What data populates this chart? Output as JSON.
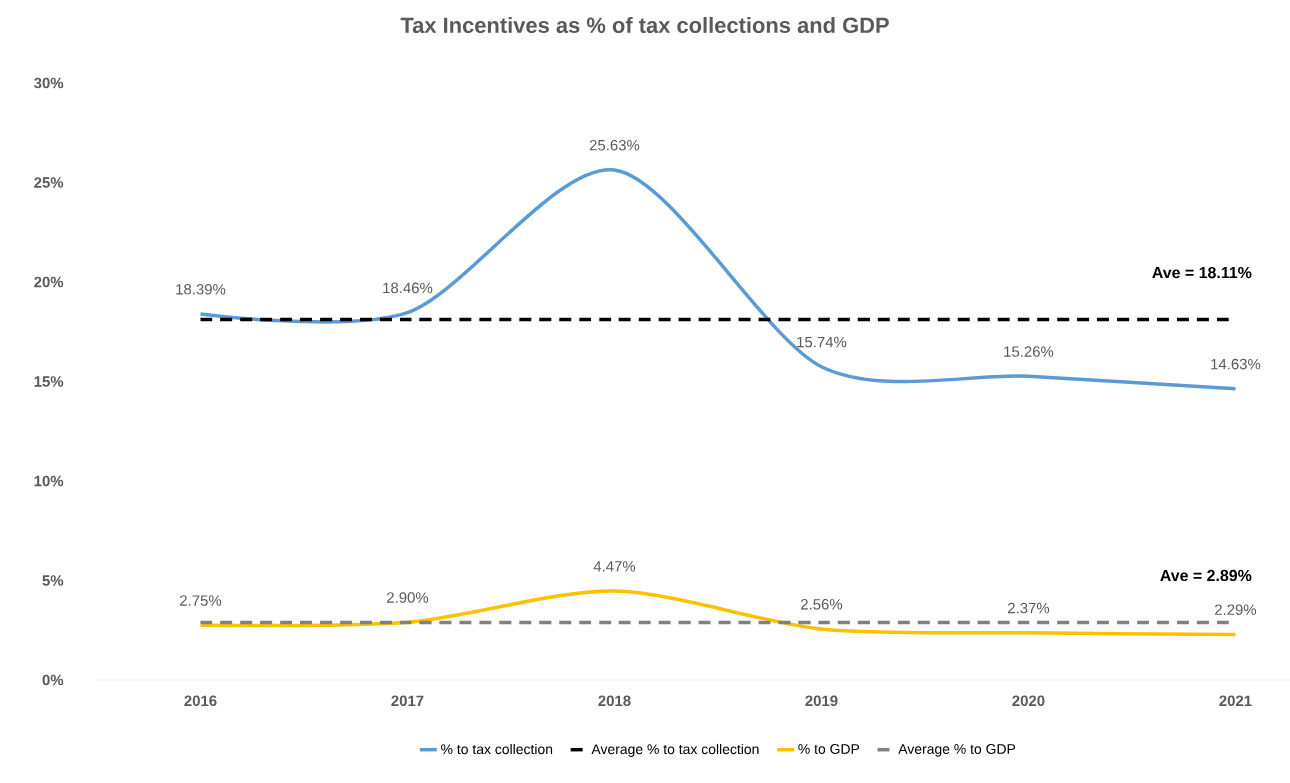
{
  "chart_data": {
    "type": "line",
    "title": "Tax Incentives as % of tax collections and GDP",
    "categories": [
      "2016",
      "2017",
      "2018",
      "2019",
      "2020",
      "2021"
    ],
    "series": [
      {
        "name": "% to tax collection",
        "color": "#5b9bd5",
        "values": [
          18.39,
          18.46,
          25.63,
          15.74,
          15.26,
          14.63
        ],
        "value_labels": [
          "18.39%",
          "18.46%",
          "25.63%",
          "15.74%",
          "15.26%",
          "14.63%"
        ]
      },
      {
        "name": "Average % to tax collection",
        "color": "#000000",
        "line_style": "dashed",
        "values": [
          18.11,
          18.11,
          18.11,
          18.11,
          18.11,
          18.11
        ]
      },
      {
        "name": "% to GDP",
        "color": "#ffc000",
        "values": [
          2.75,
          2.9,
          4.47,
          2.56,
          2.37,
          2.29
        ],
        "value_labels": [
          "2.75%",
          "2.90%",
          "4.47%",
          "2.56%",
          "2.37%",
          "2.29%"
        ]
      },
      {
        "name": "Average % to GDP",
        "color": "#808080",
        "line_style": "dashed",
        "values": [
          2.89,
          2.89,
          2.89,
          2.89,
          2.89,
          2.89
        ]
      }
    ],
    "ylim": [
      0,
      30
    ],
    "yticks": [
      {
        "value": 0,
        "label": "0%"
      },
      {
        "value": 5,
        "label": "5%"
      },
      {
        "value": 10,
        "label": "10%"
      },
      {
        "value": 15,
        "label": "15%"
      },
      {
        "value": 20,
        "label": "20%"
      },
      {
        "value": 25,
        "label": "25%"
      },
      {
        "value": 30,
        "label": "30%"
      }
    ],
    "annotations": [
      {
        "text": "Ave = 18.11%",
        "x": "2021",
        "y": 18.11
      },
      {
        "text": "Ave = 2.89%",
        "x": "2021",
        "y": 2.89
      }
    ],
    "legend": "bottom",
    "marker": "none",
    "grid": false
  }
}
